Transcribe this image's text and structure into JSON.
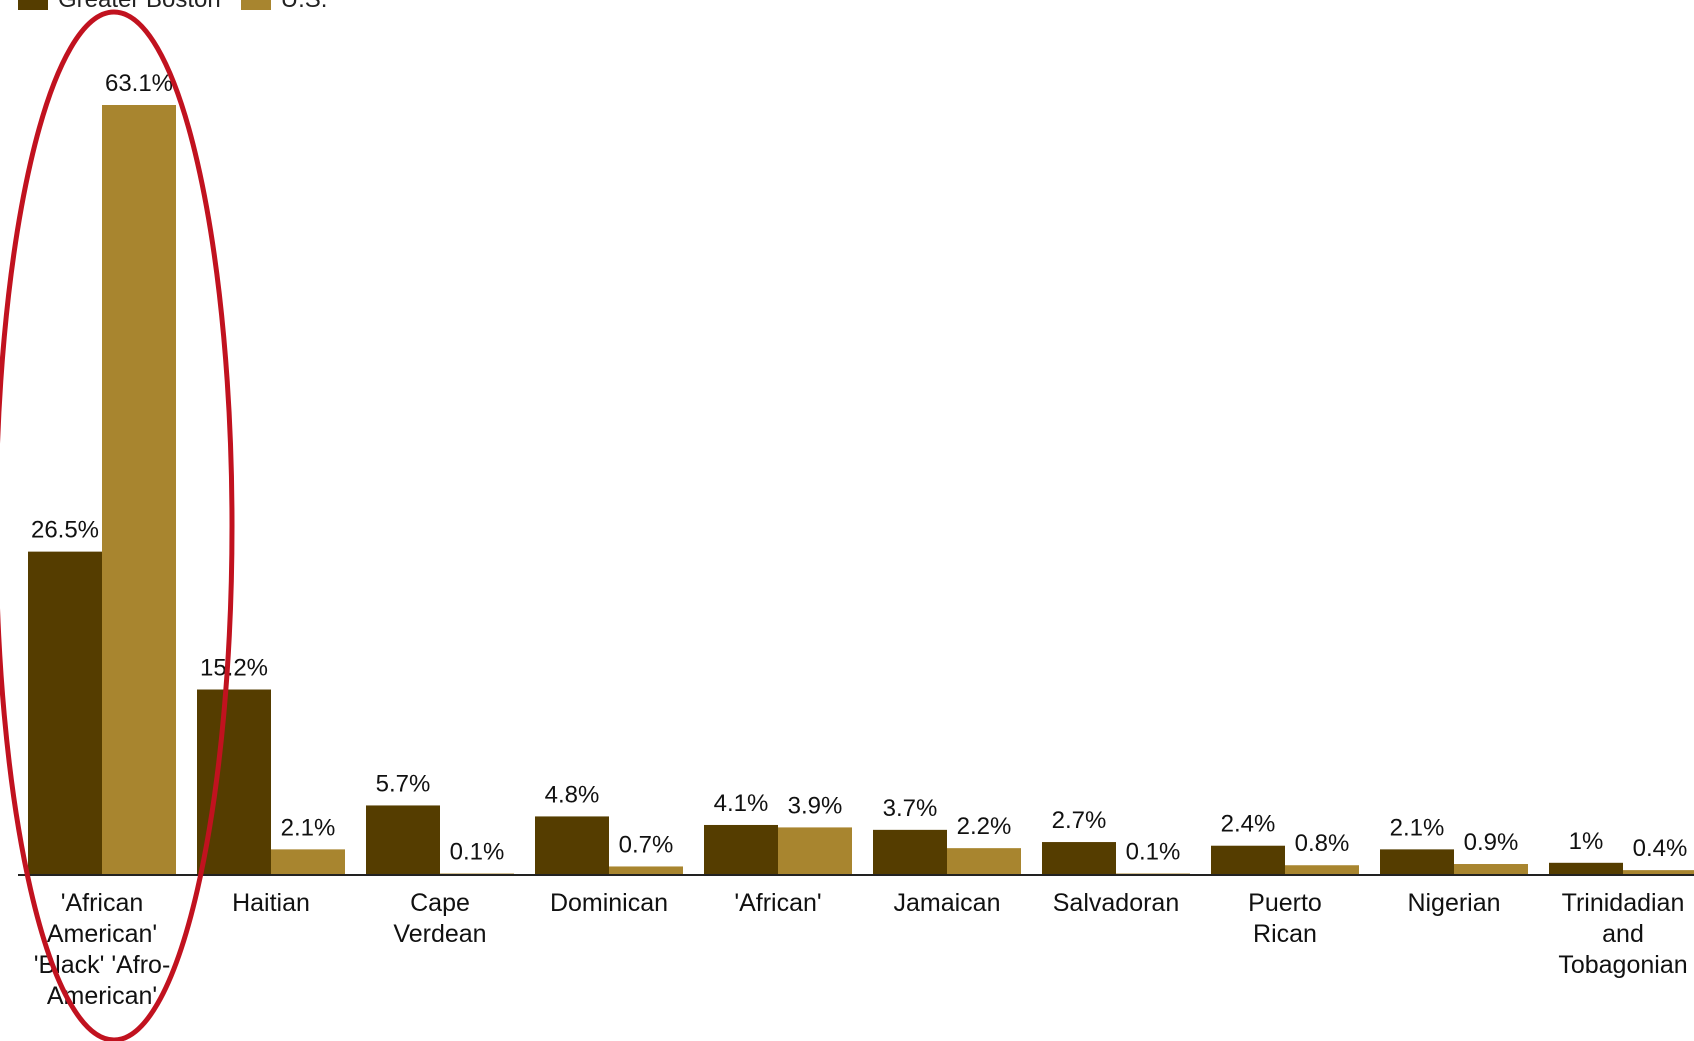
{
  "chart_data": {
    "type": "bar",
    "title": "",
    "xlabel": "",
    "ylabel": "",
    "ylim": [
      0,
      63.1
    ],
    "grid": false,
    "legend_position": "top-left",
    "categories": [
      "'African American' 'Black' 'Afro-American'",
      "Haitian",
      "Cape Verdean",
      "Dominican",
      "'African'",
      "Jamaican",
      "Salvadoran",
      "Puerto Rican",
      "Nigerian",
      "Trinidadian and Tobagonian"
    ],
    "series": [
      {
        "name": "Greater Boston",
        "color": "#553d00",
        "values": [
          26.5,
          15.2,
          5.7,
          4.8,
          4.1,
          3.7,
          2.7,
          2.4,
          2.1,
          1
        ],
        "labels": [
          "26.5%",
          "15.2%",
          "5.7%",
          "4.8%",
          "4.1%",
          "3.7%",
          "2.7%",
          "2.4%",
          "2.1%",
          "1%"
        ]
      },
      {
        "name": "U.S.",
        "color": "#a8852f",
        "values": [
          63.1,
          2.1,
          0.1,
          0.7,
          3.9,
          2.2,
          0.1,
          0.8,
          0.9,
          0.4
        ],
        "labels": [
          "63.1%",
          "2.1%",
          "0.1%",
          "0.7%",
          "3.9%",
          "2.2%",
          "0.1%",
          "0.8%",
          "0.9%",
          "0.4%"
        ]
      }
    ],
    "annotation": {
      "type": "ellipse",
      "color": "#c1121f",
      "target_category": "'African American' 'Black' 'Afro-American'"
    }
  }
}
